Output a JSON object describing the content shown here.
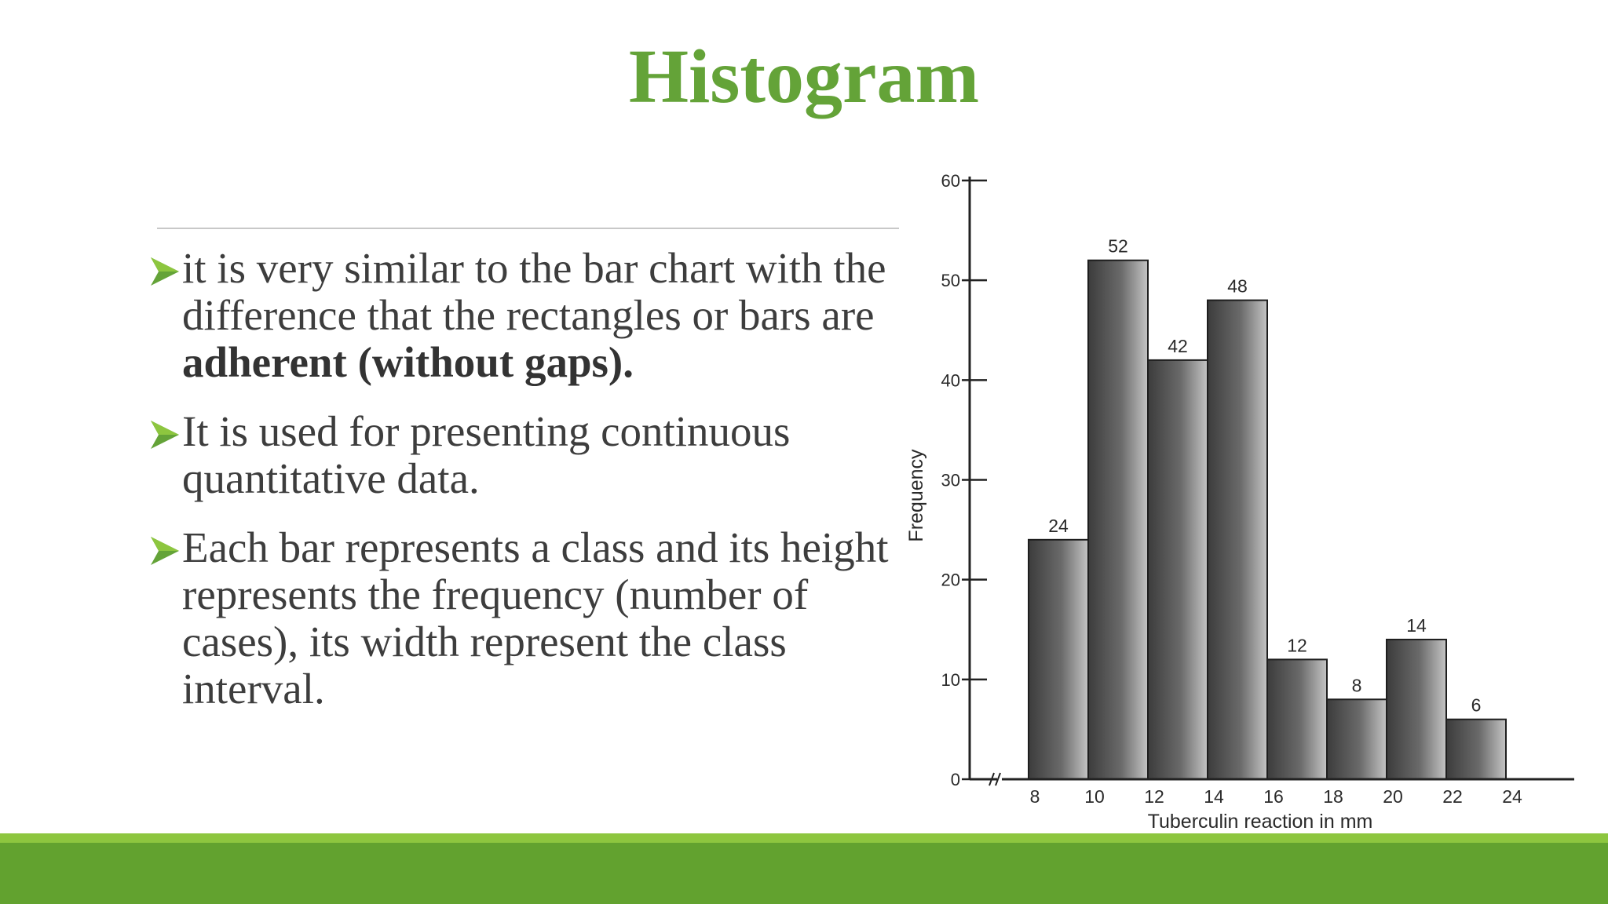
{
  "slide": {
    "title": "Histogram",
    "title_color": "#64a338",
    "accent_color": "#64a338",
    "footer_light_color": "#8dc63f",
    "footer_dark_color": "#62a22f",
    "bullets": [
      {
        "parts": [
          {
            "text": "it is very similar to the bar chart with the difference that the rectangles or bars are ",
            "bold": false
          },
          {
            "text": "adherent (without gaps).",
            "bold": true
          }
        ]
      },
      {
        "parts": [
          {
            "text": "It is used for presenting continuous quantitative data.",
            "bold": false
          }
        ]
      },
      {
        "parts": [
          {
            "text": "Each bar represents a class and its height represents the frequency (number of cases), its width represent the class interval.",
            "bold": false
          }
        ]
      }
    ],
    "bullet_icon": "arrow-right-icon"
  },
  "chart_data": {
    "type": "bar",
    "title": "",
    "xlabel": "Tuberculin reaction in mm",
    "ylabel": "Frequency",
    "ylim": [
      0,
      60
    ],
    "yticks": [
      0,
      10,
      20,
      30,
      40,
      50,
      60
    ],
    "xticks": [
      8,
      10,
      12,
      14,
      16,
      18,
      20,
      22,
      24
    ],
    "bins": [
      {
        "start": 8,
        "end": 10,
        "value": 24
      },
      {
        "start": 10,
        "end": 12,
        "value": 52
      },
      {
        "start": 12,
        "end": 14,
        "value": 42
      },
      {
        "start": 14,
        "end": 16,
        "value": 48
      },
      {
        "start": 16,
        "end": 18,
        "value": 12
      },
      {
        "start": 18,
        "end": 20,
        "value": 8
      },
      {
        "start": 20,
        "end": 22,
        "value": 14
      },
      {
        "start": 22,
        "end": 24,
        "value": 6
      }
    ],
    "axis_break": true,
    "grid": false,
    "legend": false
  }
}
